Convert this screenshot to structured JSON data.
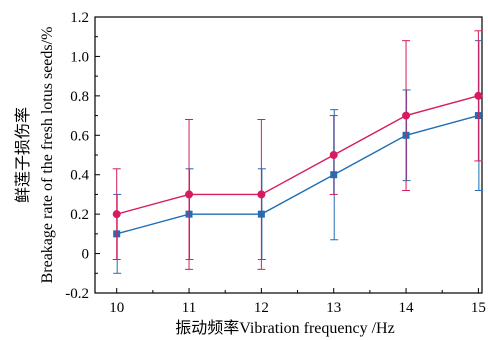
{
  "chart_data": {
    "type": "line",
    "xlabel": "振动频率Vibration frequency /Hz",
    "ylabel_line1": "鲜莲子损伤率",
    "ylabel_line2": "Breakage rate of the fresh lotus seeds/%",
    "x": [
      10,
      11,
      12,
      13,
      14,
      15
    ],
    "xlim": [
      9.7,
      15.05
    ],
    "ylim": [
      -0.2,
      1.2
    ],
    "xticks": [
      "10",
      "11",
      "12",
      "13",
      "14",
      "15"
    ],
    "yticks": [
      "-0.2",
      "0",
      "0.2",
      "0.4",
      "0.6",
      "0.8",
      "1.0",
      "1.2"
    ],
    "grid": false,
    "series": [
      {
        "color": "#d81b60",
        "marker": "circle",
        "values": [
          0.2,
          0.3,
          0.3,
          0.5,
          0.7,
          0.8
        ],
        "error": [
          0.23,
          0.38,
          0.38,
          0.2,
          0.38,
          0.33
        ]
      },
      {
        "color": "#1f6fb5",
        "marker": "square",
        "values": [
          0.1,
          0.2,
          0.2,
          0.4,
          0.6,
          0.7
        ],
        "error": [
          0.2,
          0.23,
          0.23,
          0.33,
          0.23,
          0.38
        ]
      }
    ]
  }
}
